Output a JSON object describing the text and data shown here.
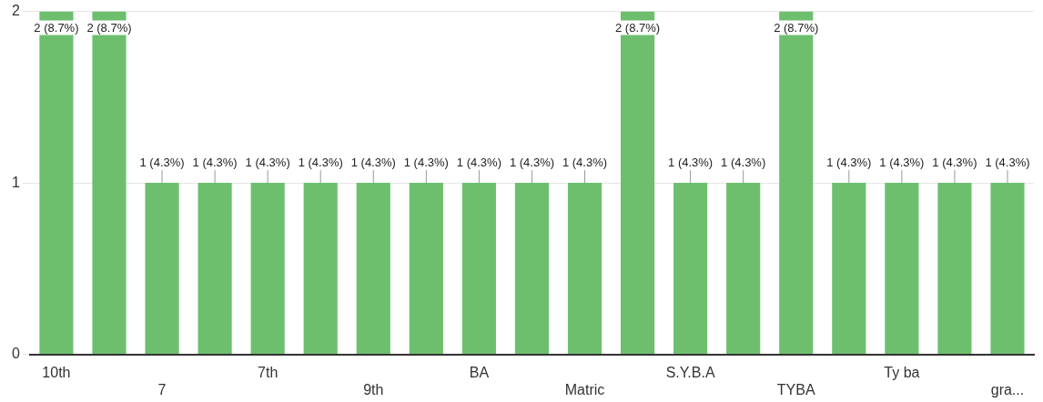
{
  "chart_data": {
    "type": "bar",
    "categories": [
      "10th",
      null,
      "7",
      null,
      "7th",
      null,
      "9th",
      null,
      "BA",
      null,
      "Matric",
      null,
      "S.Y.B.A",
      null,
      "TYBA",
      null,
      "Ty ba",
      null,
      "gra..."
    ],
    "values": [
      2,
      2,
      1,
      1,
      1,
      1,
      1,
      1,
      1,
      1,
      1,
      2,
      1,
      1,
      2,
      1,
      1,
      1,
      1
    ],
    "value_labels": [
      "2 (8.7%)",
      "2 (8.7%)",
      "1 (4.3%)",
      "1 (4.3%)",
      "1 (4.3%)",
      "1 (4.3%)",
      "1 (4.3%)",
      "1 (4.3%)",
      "1 (4.3%)",
      "1 (4.3%)",
      "1 (4.3%)",
      "2 (8.7%)",
      "1 (4.3%)",
      "1 (4.3%)",
      "2 (8.7%)",
      "1 (4.3%)",
      "1 (4.3%)",
      "1 (4.3%)",
      "1 (4.3%)"
    ],
    "color": "#6dbf6e",
    "ylim": [
      0,
      2
    ],
    "yticks": [
      0,
      1,
      2
    ],
    "grid": "y"
  }
}
